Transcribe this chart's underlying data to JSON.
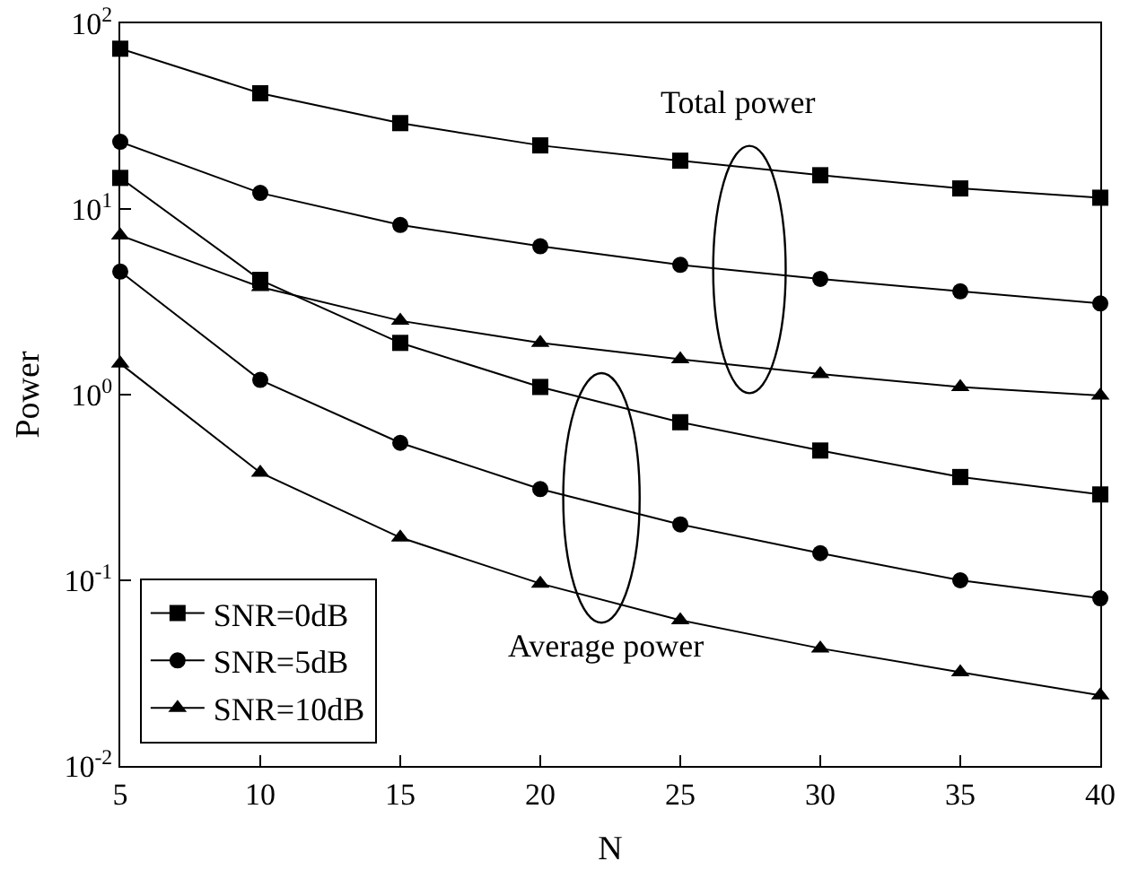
{
  "chart_data": {
    "type": "line",
    "xlabel": "N",
    "ylabel": "Power",
    "x": [
      5,
      10,
      15,
      20,
      25,
      30,
      35,
      40
    ],
    "series": [
      {
        "name": "SNR=0dB",
        "color": "#000000",
        "marker": "square",
        "values": [
          73,
          42,
          29,
          22,
          18.2,
          15.2,
          12.9,
          11.5
        ]
      },
      {
        "name": "SNR=5dB",
        "color": "#000000",
        "marker": "circle",
        "values": [
          23,
          12.2,
          8.2,
          6.3,
          5.0,
          4.2,
          3.6,
          3.1
        ]
      },
      {
        "name": "SNR=10dB",
        "color": "#000000",
        "marker": "triangle",
        "values": [
          7.2,
          3.8,
          2.5,
          1.9,
          1.55,
          1.29,
          1.1,
          0.99
        ]
      },
      {
        "color": "#000000",
        "marker": "square",
        "values": [
          14.7,
          4.15,
          1.9,
          1.1,
          0.71,
          0.5,
          0.36,
          0.29
        ]
      },
      {
        "color": "#000000",
        "marker": "circle",
        "values": [
          4.6,
          1.2,
          0.55,
          0.31,
          0.2,
          0.14,
          0.1,
          0.08
        ]
      },
      {
        "color": "#000000",
        "marker": "triangle",
        "values": [
          1.47,
          0.38,
          0.17,
          0.096,
          0.061,
          0.043,
          0.032,
          0.024
        ]
      }
    ],
    "log": "y",
    "xlim": [
      5,
      40
    ],
    "xticks": [
      5,
      10,
      15,
      20,
      25,
      30,
      35,
      40
    ],
    "ylim": [
      0.01,
      100
    ],
    "yticks": [
      {
        "value": 0.01,
        "label": "10$^{-2}$"
      },
      {
        "value": 0.1,
        "label": "10$^{-1}$"
      },
      {
        "value": 1,
        "label": "10$^{0}$"
      },
      {
        "value": 10,
        "label": "10$^{1}$"
      },
      {
        "value": 100,
        "label": "10$^{2}$"
      }
    ],
    "grid": false,
    "legend": "bottom left",
    "line_style": "solid",
    "annotations": [
      "Total power",
      "Average power"
    ]
  }
}
